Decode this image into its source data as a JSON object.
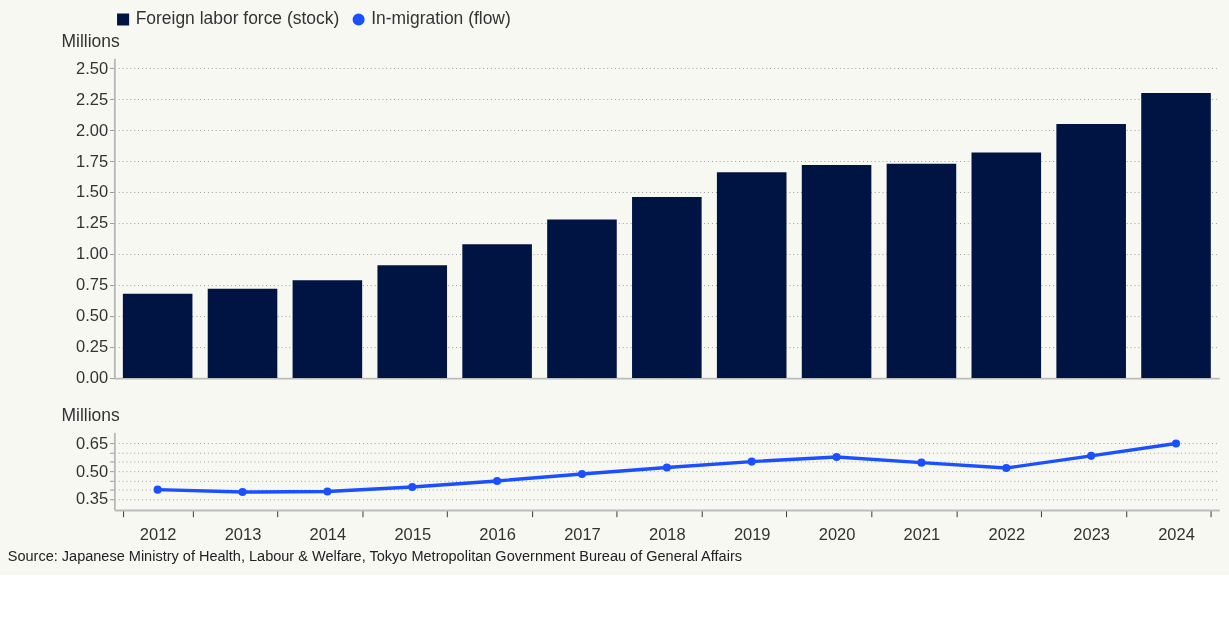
{
  "chart_data": [
    {
      "type": "bar",
      "categories": [
        "2012",
        "2013",
        "2014",
        "2015",
        "2016",
        "2017",
        "2018",
        "2019",
        "2020",
        "2021",
        "2022",
        "2023",
        "2024"
      ],
      "series": [
        {
          "name": "Foreign labor force (stock)",
          "color": "#001443",
          "values": [
            0.68,
            0.72,
            0.79,
            0.91,
            1.08,
            1.28,
            1.46,
            1.66,
            1.72,
            1.73,
            1.82,
            2.05,
            2.3
          ]
        }
      ],
      "ylabel": "Millions",
      "ylim": [
        0,
        2.58
      ],
      "yticks": [
        {
          "value": 0,
          "label": "0.00"
        },
        {
          "value": 0.25,
          "label": "0.25"
        },
        {
          "value": 0.5,
          "label": "0.50"
        },
        {
          "value": 0.75,
          "label": "0.75"
        },
        {
          "value": 1,
          "label": "1.00"
        },
        {
          "value": 1.25,
          "label": "1.25"
        },
        {
          "value": 1.5,
          "label": "1.50"
        },
        {
          "value": 1.75,
          "label": "1.75"
        },
        {
          "value": 2,
          "label": "2.00"
        },
        {
          "value": 2.25,
          "label": "2.25"
        },
        {
          "value": 2.5,
          "label": "2.50"
        }
      ],
      "grid": "y",
      "legend": "top left",
      "tick_labels": "y"
    },
    {
      "type": "line",
      "categories": [
        "2012",
        "2013",
        "2014",
        "2015",
        "2016",
        "2017",
        "2018",
        "2019",
        "2020",
        "2021",
        "2022",
        "2023",
        "2024"
      ],
      "series": [
        {
          "name": "In-migration (flow)",
          "color": "#1a50ff",
          "values": [
            0.4,
            0.387,
            0.39,
            0.414,
            0.447,
            0.485,
            0.52,
            0.552,
            0.577,
            0.546,
            0.517,
            0.583,
            0.65
          ]
        }
      ],
      "ylabel": "Millions",
      "ylim": [
        0.29,
        0.71
      ],
      "yticks": [
        0.35,
        {
          "value": 0.4,
          "label": null
        },
        {
          "value": 0.45,
          "label": null
        },
        {
          "value": 0.5,
          "label": "0.50"
        },
        {
          "value": 0.55,
          "label": null
        },
        {
          "value": 0.6,
          "label": null
        },
        0.65
      ],
      "grid": "y",
      "marker": "circle",
      "line_style": "solid",
      "annotations": [
        "Source: Japanese Ministry of Health, Labour & Welfare, Tokyo Metropolitan Government Bureau of General Affairs"
      ]
    }
  ]
}
